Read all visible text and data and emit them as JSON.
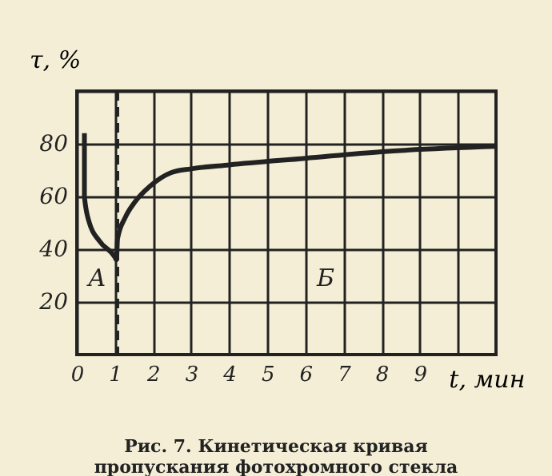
{
  "chart_data": {
    "type": "line",
    "xlabel": "t, мин",
    "ylabel": "τ, %",
    "x": [
      0.2,
      0.2,
      0.33,
      0.6,
      1.0,
      1.04,
      1.07,
      1.27,
      1.53,
      1.93,
      2.47,
      3,
      4,
      6,
      8,
      11
    ],
    "values": [
      84,
      60,
      50,
      43,
      37,
      36,
      44,
      52,
      58,
      64,
      69,
      70.5,
      72,
      74.5,
      77,
      79
    ],
    "color": "#222222",
    "marker": "none",
    "line_style": "solid",
    "xlim": [
      0,
      11
    ],
    "xticks": [
      0,
      1,
      2,
      3,
      4,
      5,
      6,
      7,
      8,
      9,
      {
        "value": 10,
        "label": null
      }
    ],
    "ylim": [
      0,
      100
    ],
    "yticks": [
      20,
      40,
      60,
      80,
      {
        "value": 100,
        "label": null
      }
    ],
    "grid": true,
    "ref_lines": [
      {
        "axis": "x",
        "value": 1.07,
        "line_style": "dashed"
      }
    ],
    "annotations": [
      "А",
      "Б",
      "Рис. 7. Кинетическая кривая пропускания фотохромного стекла"
    ]
  }
}
